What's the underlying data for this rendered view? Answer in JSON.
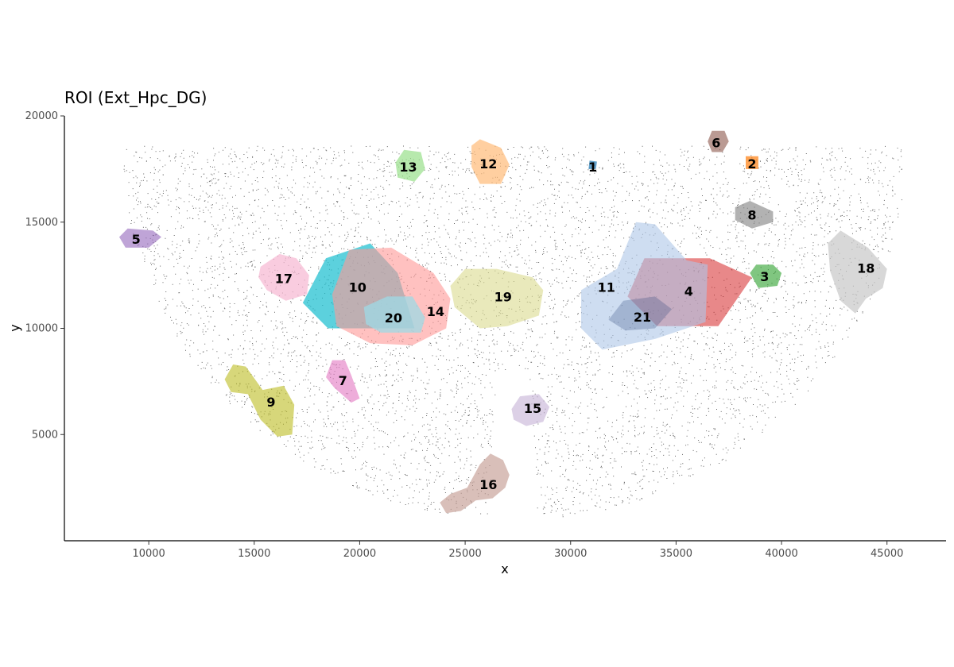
{
  "chart_data": {
    "type": "scatter",
    "title": "ROI (Ext_Hpc_DG)",
    "xlabel": "x",
    "ylabel": "y",
    "xlim": [
      6000,
      47800
    ],
    "ylim": [
      0,
      20000
    ],
    "xticks": [
      10000,
      15000,
      20000,
      25000,
      30000,
      35000,
      40000,
      45000
    ],
    "yticks": [
      5000,
      10000,
      15000,
      20000
    ],
    "grid": false,
    "legend": "none",
    "point_color": "#333333",
    "background_cells": {
      "shape": "half-ellipse",
      "center_x": 27300,
      "top_y": 18600,
      "bottom_y": 1000,
      "x_min": 8500,
      "x_max": 45700
    },
    "regions": [
      {
        "id": "1",
        "color": "#1f77b4",
        "alpha": 0.7,
        "polygon": [
          [
            30850,
            17500
          ],
          [
            31200,
            17500
          ],
          [
            31250,
            17850
          ],
          [
            30900,
            17900
          ]
        ]
      },
      {
        "id": "2",
        "color": "#ff7f0e",
        "alpha": 0.7,
        "polygon": [
          [
            38300,
            17500
          ],
          [
            38900,
            17500
          ],
          [
            38900,
            18100
          ],
          [
            38300,
            18100
          ]
        ]
      },
      {
        "id": "3",
        "color": "#2ca02c",
        "alpha": 0.6,
        "polygon": [
          [
            38500,
            12600
          ],
          [
            38800,
            13000
          ],
          [
            39600,
            13000
          ],
          [
            40000,
            12600
          ],
          [
            39800,
            12000
          ],
          [
            38900,
            11900
          ]
        ]
      },
      {
        "id": "4",
        "color": "#d62728",
        "alpha": 0.55,
        "polygon": [
          [
            32700,
            11500
          ],
          [
            33500,
            13300
          ],
          [
            36600,
            13300
          ],
          [
            38600,
            12400
          ],
          [
            37000,
            10100
          ],
          [
            34100,
            10100
          ]
        ]
      },
      {
        "id": "5",
        "color": "#9467bd",
        "alpha": 0.6,
        "polygon": [
          [
            8600,
            14300
          ],
          [
            9000,
            14700
          ],
          [
            10200,
            14600
          ],
          [
            10600,
            14300
          ],
          [
            10000,
            13800
          ],
          [
            8900,
            13800
          ]
        ]
      },
      {
        "id": "6",
        "color": "#8c564b",
        "alpha": 0.6,
        "polygon": [
          [
            36500,
            18800
          ],
          [
            36700,
            19300
          ],
          [
            37300,
            19300
          ],
          [
            37500,
            18800
          ],
          [
            37200,
            18300
          ],
          [
            36700,
            18300
          ]
        ]
      },
      {
        "id": "7",
        "color": "#e377c2",
        "alpha": 0.6,
        "polygon": [
          [
            18400,
            7700
          ],
          [
            18700,
            8500
          ],
          [
            19300,
            8500
          ],
          [
            19600,
            7800
          ],
          [
            20000,
            6700
          ],
          [
            19600,
            6500
          ],
          [
            18800,
            7200
          ]
        ]
      },
      {
        "id": "8",
        "color": "#7f7f7f",
        "alpha": 0.6,
        "polygon": [
          [
            37800,
            15700
          ],
          [
            38500,
            16000
          ],
          [
            39600,
            15500
          ],
          [
            39600,
            15000
          ],
          [
            38600,
            14700
          ],
          [
            37800,
            15100
          ]
        ]
      },
      {
        "id": "9",
        "color": "#bcbd22",
        "alpha": 0.6,
        "polygon": [
          [
            13600,
            7600
          ],
          [
            14000,
            8300
          ],
          [
            14600,
            8200
          ],
          [
            15400,
            7100
          ],
          [
            16400,
            7300
          ],
          [
            16900,
            6400
          ],
          [
            16800,
            5000
          ],
          [
            16100,
            4900
          ],
          [
            15300,
            5700
          ],
          [
            14700,
            6900
          ],
          [
            13900,
            7000
          ]
        ]
      },
      {
        "id": "10",
        "color": "#17becf",
        "alpha": 0.7,
        "polygon": [
          [
            17300,
            11200
          ],
          [
            18400,
            13300
          ],
          [
            20500,
            14000
          ],
          [
            21800,
            12600
          ],
          [
            22600,
            10000
          ],
          [
            18500,
            10000
          ]
        ]
      },
      {
        "id": "11",
        "color": "#aec7e8",
        "alpha": 0.6,
        "polygon": [
          [
            30500,
            11800
          ],
          [
            32200,
            12800
          ],
          [
            33100,
            15000
          ],
          [
            34000,
            14900
          ],
          [
            35500,
            13200
          ],
          [
            36500,
            13000
          ],
          [
            36400,
            10300
          ],
          [
            34000,
            9500
          ],
          [
            31500,
            9000
          ],
          [
            30500,
            10000
          ]
        ]
      },
      {
        "id": "12",
        "color": "#ffbb78",
        "alpha": 0.7,
        "polygon": [
          [
            25300,
            18600
          ],
          [
            25700,
            18900
          ],
          [
            26700,
            18500
          ],
          [
            27100,
            17700
          ],
          [
            26700,
            16800
          ],
          [
            25700,
            16800
          ],
          [
            25300,
            17600
          ]
        ]
      },
      {
        "id": "13",
        "color": "#98df8a",
        "alpha": 0.7,
        "polygon": [
          [
            21700,
            17800
          ],
          [
            22100,
            18400
          ],
          [
            22900,
            18300
          ],
          [
            23100,
            17500
          ],
          [
            22600,
            16900
          ],
          [
            21800,
            17100
          ]
        ]
      },
      {
        "id": "14",
        "color": "#ff9896",
        "alpha": 0.6,
        "polygon": [
          [
            19500,
            13700
          ],
          [
            21500,
            13800
          ],
          [
            23500,
            12600
          ],
          [
            24300,
            11400
          ],
          [
            24100,
            10000
          ],
          [
            22500,
            9200
          ],
          [
            20500,
            9300
          ],
          [
            18900,
            10100
          ],
          [
            18700,
            11600
          ]
        ]
      },
      {
        "id": "15",
        "color": "#c5b0d5",
        "alpha": 0.6,
        "polygon": [
          [
            27200,
            6200
          ],
          [
            27600,
            6800
          ],
          [
            28500,
            6900
          ],
          [
            29000,
            6300
          ],
          [
            28700,
            5600
          ],
          [
            27900,
            5400
          ],
          [
            27300,
            5700
          ]
        ]
      },
      {
        "id": "16",
        "color": "#c49c94",
        "alpha": 0.65,
        "polygon": [
          [
            23800,
            1800
          ],
          [
            24300,
            2200
          ],
          [
            25100,
            2500
          ],
          [
            25700,
            3600
          ],
          [
            26200,
            4100
          ],
          [
            26800,
            3800
          ],
          [
            27100,
            3100
          ],
          [
            26900,
            2500
          ],
          [
            26300,
            2000
          ],
          [
            25500,
            1900
          ],
          [
            24800,
            1400
          ],
          [
            24100,
            1300
          ]
        ]
      },
      {
        "id": "17",
        "color": "#f7b6d2",
        "alpha": 0.7,
        "polygon": [
          [
            15300,
            12900
          ],
          [
            16200,
            13500
          ],
          [
            17000,
            13300
          ],
          [
            17600,
            12500
          ],
          [
            17500,
            11600
          ],
          [
            16500,
            11300
          ],
          [
            15600,
            11800
          ],
          [
            15200,
            12400
          ]
        ]
      },
      {
        "id": "18",
        "color": "#c7c7c7",
        "alpha": 0.7,
        "polygon": [
          [
            42200,
            14000
          ],
          [
            42800,
            14600
          ],
          [
            44100,
            13800
          ],
          [
            45000,
            12800
          ],
          [
            44800,
            11900
          ],
          [
            44000,
            11400
          ],
          [
            43500,
            10700
          ],
          [
            42800,
            11300
          ],
          [
            42300,
            12700
          ]
        ]
      },
      {
        "id": "19",
        "color": "#dbdb8d",
        "alpha": 0.6,
        "polygon": [
          [
            24300,
            12000
          ],
          [
            25000,
            12800
          ],
          [
            26500,
            12800
          ],
          [
            28200,
            12400
          ],
          [
            28700,
            11800
          ],
          [
            28500,
            10600
          ],
          [
            27000,
            10100
          ],
          [
            25700,
            10000
          ],
          [
            24500,
            11000
          ]
        ]
      },
      {
        "id": "20",
        "color": "#9edae5",
        "alpha": 0.75,
        "polygon": [
          [
            20200,
            11000
          ],
          [
            21300,
            11500
          ],
          [
            22500,
            11500
          ],
          [
            23100,
            10500
          ],
          [
            22900,
            9800
          ],
          [
            21000,
            9800
          ],
          [
            20300,
            10200
          ]
        ]
      },
      {
        "id": "21",
        "color": "#1f3b73",
        "alpha": 0.25,
        "polygon": [
          [
            31800,
            10400
          ],
          [
            32500,
            11300
          ],
          [
            34000,
            11500
          ],
          [
            34800,
            10900
          ],
          [
            34000,
            10000
          ],
          [
            32600,
            9900
          ]
        ]
      }
    ],
    "region_labels": [
      {
        "text": "1",
        "x": 31050,
        "y": 17600
      },
      {
        "text": "2",
        "x": 38600,
        "y": 17750
      },
      {
        "text": "3",
        "x": 39200,
        "y": 12450
      },
      {
        "text": "4",
        "x": 35600,
        "y": 11750
      },
      {
        "text": "5",
        "x": 9400,
        "y": 14200
      },
      {
        "text": "6",
        "x": 36900,
        "y": 18750
      },
      {
        "text": "7",
        "x": 19200,
        "y": 7550
      },
      {
        "text": "8",
        "x": 38600,
        "y": 15350
      },
      {
        "text": "9",
        "x": 15800,
        "y": 6550
      },
      {
        "text": "10",
        "x": 19900,
        "y": 11950
      },
      {
        "text": "11",
        "x": 31700,
        "y": 11950
      },
      {
        "text": "12",
        "x": 26100,
        "y": 17750
      },
      {
        "text": "13",
        "x": 22300,
        "y": 17600
      },
      {
        "text": "14",
        "x": 23600,
        "y": 10800
      },
      {
        "text": "15",
        "x": 28200,
        "y": 6250
      },
      {
        "text": "16",
        "x": 26100,
        "y": 2650
      },
      {
        "text": "17",
        "x": 16400,
        "y": 12350
      },
      {
        "text": "18",
        "x": 44000,
        "y": 12850
      },
      {
        "text": "19",
        "x": 26800,
        "y": 11500
      },
      {
        "text": "20",
        "x": 21600,
        "y": 10500
      },
      {
        "text": "21",
        "x": 33400,
        "y": 10550
      }
    ]
  }
}
